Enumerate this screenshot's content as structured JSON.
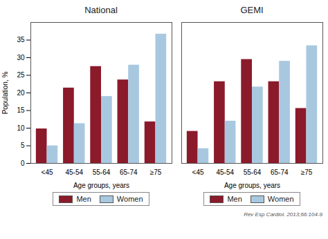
{
  "chart_data": [
    {
      "type": "bar",
      "title": "National",
      "categories": [
        "<45",
        "45-54",
        "55-64",
        "65-74",
        "≥75"
      ],
      "series": [
        {
          "name": "Men",
          "color": "#8B1A2B",
          "values": [
            9.8,
            21.4,
            27.5,
            23.7,
            11.8
          ]
        },
        {
          "name": "Women",
          "color": "#A8C8E0",
          "values": [
            5.0,
            11.3,
            19.0,
            27.9,
            36.7
          ]
        }
      ],
      "xlabel": "Age groups, years",
      "ylabel": "Population, %",
      "ylim": [
        0,
        40
      ],
      "yticks": [
        0,
        5,
        10,
        15,
        20,
        25,
        30,
        35
      ],
      "grid": false,
      "legend": "bottom"
    },
    {
      "type": "bar",
      "title": "GEMI",
      "categories": [
        "<45",
        "45-54",
        "55-64",
        "65-74",
        "≥75"
      ],
      "series": [
        {
          "name": "Men",
          "color": "#8B1A2B",
          "values": [
            9.1,
            23.2,
            29.5,
            23.2,
            15.6
          ]
        },
        {
          "name": "Women",
          "color": "#A8C8E0",
          "values": [
            4.2,
            12.0,
            21.7,
            29.0,
            33.4
          ]
        }
      ],
      "xlabel": "Age groups, years",
      "ylim": [
        0,
        40
      ],
      "tick_labels": "x",
      "grid": false,
      "legend": "bottom",
      "annotations": [
        "Rev Esp Cardiol. 2013;66:104-9"
      ]
    }
  ]
}
